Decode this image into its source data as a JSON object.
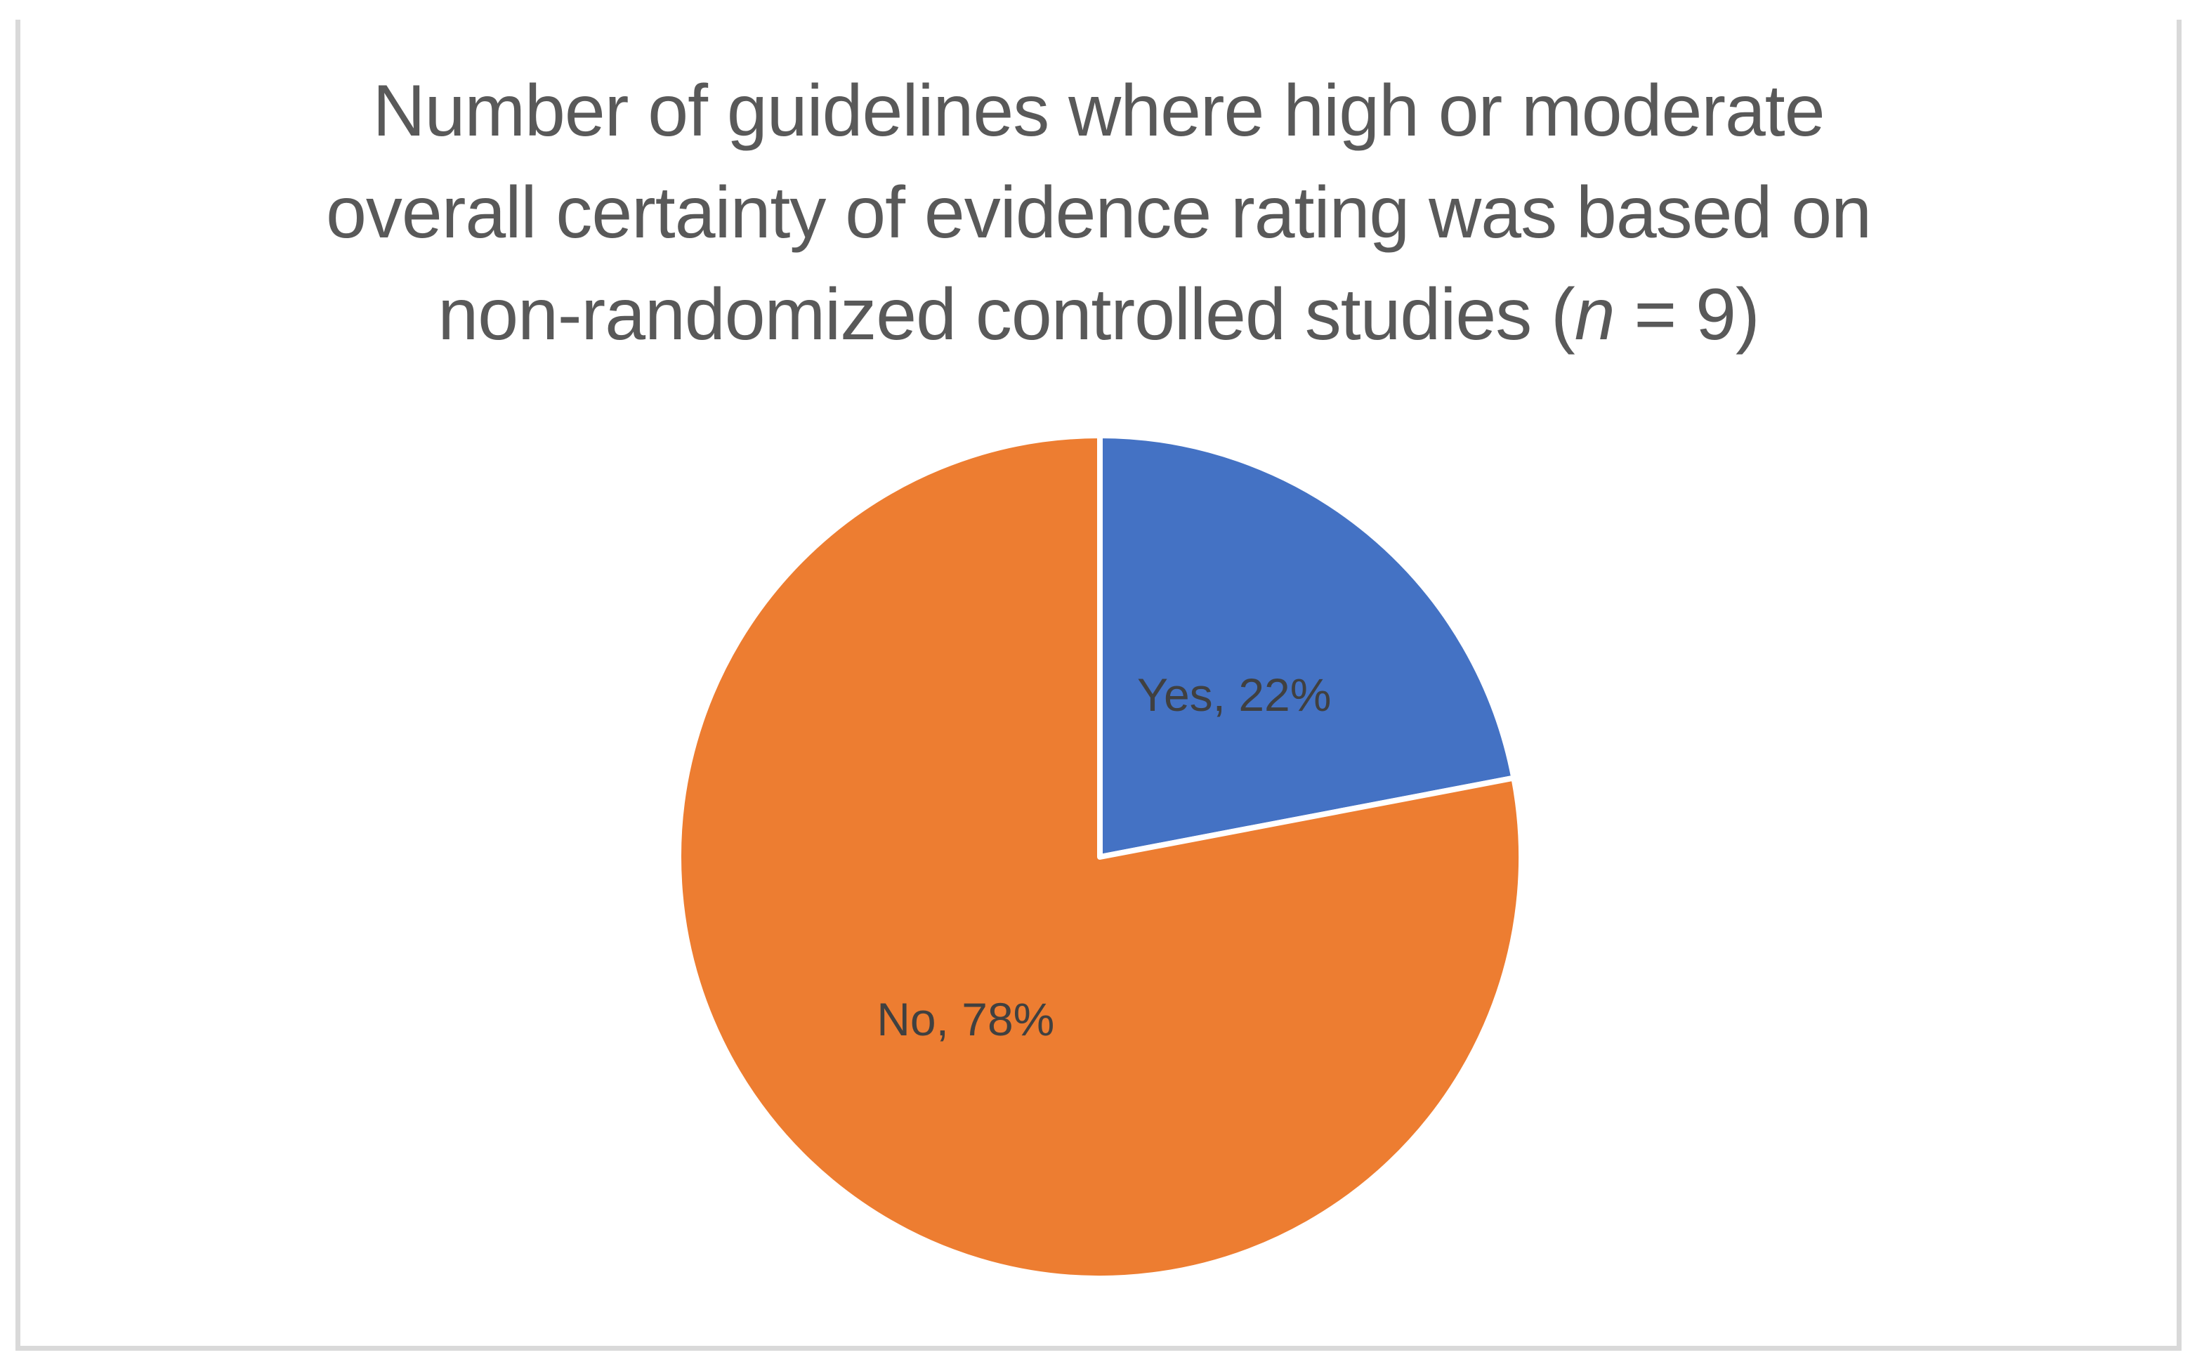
{
  "figure": {
    "background": "#FFFFFF",
    "border_color": "#D9D9D9"
  },
  "title": {
    "full": "Number of guidelines where high or moderate overall certainty of evidence rating was based on non-randomized controlled studies (n = 9)",
    "line1": "Number of guidelines where high or moderate",
    "line2": "overall certainty of evidence rating was based on",
    "line3_pre": "non-randomized controlled studies (",
    "line3_italic": "n",
    "line3_post": " = 9)",
    "color": "#595959"
  },
  "chart_data": {
    "type": "pie",
    "title": "Number of guidelines where high or moderate overall certainty of evidence rating was based on non-randomized controlled studies (n = 9)",
    "sample_size_label": "n = 9",
    "slices": [
      {
        "label": "Yes",
        "percent": 22,
        "color": "#4472C4",
        "data_label": "Yes, 22%"
      },
      {
        "label": "No",
        "percent": 78,
        "color": "#ED7D31",
        "data_label": "No, 78%"
      }
    ],
    "start_angle_deg": 0,
    "direction": "clockwise",
    "legend": "none",
    "data_label_color": "#404040",
    "slice_border_color": "#FFFFFF",
    "label_radius_fraction": 0.5
  }
}
